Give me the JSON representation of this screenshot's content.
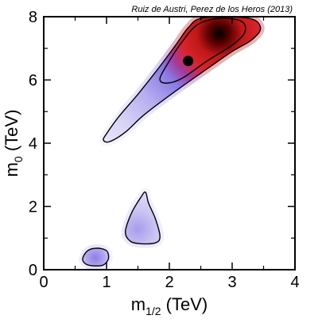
{
  "chart_data": {
    "type": "heatmap",
    "annotation": "Ruiz de Austri, Perez de los Heros (2013)",
    "xlabel": {
      "main": "m",
      "sub": "1/2",
      "unit": " (TeV)"
    },
    "ylabel": {
      "main": "m",
      "sub": "0",
      "unit": " (TeV)"
    },
    "xlim": [
      0,
      4
    ],
    "ylim": [
      0,
      8
    ],
    "xticks": [
      "0",
      "1",
      "2",
      "3",
      "4"
    ],
    "yticks": [
      "0",
      "2",
      "4",
      "6",
      "8"
    ],
    "best_fit_point": {
      "x": 2.3,
      "y": 6.6
    },
    "regions": [
      {
        "name": "high-mass band",
        "outer_contour": [
          [
            0.95,
            4.1
          ],
          [
            1.0,
            4.3
          ],
          [
            1.2,
            4.85
          ],
          [
            1.5,
            5.55
          ],
          [
            1.8,
            6.3
          ],
          [
            2.1,
            7.1
          ],
          [
            2.3,
            7.65
          ],
          [
            2.5,
            7.95
          ],
          [
            3.0,
            8.0
          ],
          [
            3.35,
            7.9
          ],
          [
            3.45,
            7.6
          ],
          [
            3.3,
            7.25
          ],
          [
            3.0,
            6.9
          ],
          [
            2.6,
            6.35
          ],
          [
            2.1,
            5.65
          ],
          [
            1.6,
            4.9
          ],
          [
            1.3,
            4.35
          ],
          [
            1.05,
            4.05
          ]
        ],
        "inner_contour": [
          [
            1.85,
            6.05
          ],
          [
            2.0,
            6.6
          ],
          [
            2.2,
            7.2
          ],
          [
            2.45,
            7.75
          ],
          [
            2.8,
            7.95
          ],
          [
            3.15,
            7.85
          ],
          [
            3.2,
            7.5
          ],
          [
            3.0,
            7.1
          ],
          [
            2.6,
            6.6
          ],
          [
            2.2,
            6.05
          ],
          [
            1.95,
            5.9
          ]
        ],
        "peak": {
          "x": 2.7,
          "y": 7.5
        }
      },
      {
        "name": "middle island",
        "outer_contour": [
          [
            1.3,
            1.2
          ],
          [
            1.4,
            1.8
          ],
          [
            1.55,
            2.3
          ],
          [
            1.62,
            2.45
          ],
          [
            1.67,
            2.1
          ],
          [
            1.78,
            1.6
          ],
          [
            1.85,
            1.05
          ],
          [
            1.78,
            0.85
          ],
          [
            1.55,
            0.82
          ],
          [
            1.38,
            0.9
          ]
        ],
        "peak": {
          "x": 1.55,
          "y": 1.3
        }
      },
      {
        "name": "low-mass island",
        "outer_contour": [
          [
            0.62,
            0.35
          ],
          [
            0.7,
            0.6
          ],
          [
            0.85,
            0.68
          ],
          [
            1.0,
            0.6
          ],
          [
            1.03,
            0.35
          ],
          [
            0.95,
            0.15
          ],
          [
            0.8,
            0.12
          ],
          [
            0.67,
            0.18
          ]
        ],
        "peak": {
          "x": 0.83,
          "y": 0.4
        }
      }
    ],
    "colormap": [
      "#ffffff",
      "#d9d5f7",
      "#8c7de6",
      "#b03a9e",
      "#d62020",
      "#000000"
    ]
  }
}
